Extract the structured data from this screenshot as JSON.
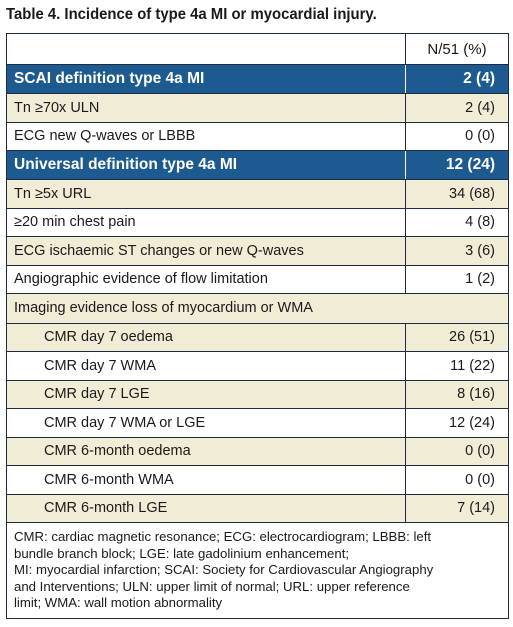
{
  "caption": "Table 4. Incidence of type 4a MI or myocardial injury.",
  "header": {
    "col1": "",
    "col2": "N/51 (%)"
  },
  "sections": {
    "scai": {
      "label": "SCAI definition type 4a MI",
      "value": "2 (4)"
    },
    "universal": {
      "label": "Universal definition type 4a MI",
      "value": "12 (24)"
    }
  },
  "scai_rows": [
    {
      "label": "Tn ≥70x ULN",
      "value": "2 (4)"
    },
    {
      "label": "ECG new Q-waves or LBBB",
      "value": "0 (0)"
    }
  ],
  "universal_rows": [
    {
      "label": "Tn ≥5x URL",
      "value": "34 (68)"
    },
    {
      "label": "≥20 min chest pain",
      "value": "4 (8)"
    },
    {
      "label": "ECG ischaemic ST changes or new Q-waves",
      "value": "3 (6)"
    },
    {
      "label": "Angiographic evidence of flow limitation",
      "value": "1 (2)"
    }
  ],
  "imaging_header": "Imaging evidence loss of myocardium or WMA",
  "imaging_rows": [
    {
      "label": "CMR day 7 oedema",
      "value": "26 (51)"
    },
    {
      "label": "CMR day 7 WMA",
      "value": "11 (22)"
    },
    {
      "label": "CMR day 7 LGE",
      "value": "8 (16)"
    },
    {
      "label": "CMR day 7 WMA or LGE",
      "value": "12 (24)"
    },
    {
      "label": "CMR 6-month oedema",
      "value": "0 (0)"
    },
    {
      "label": "CMR 6-month WMA",
      "value": "0 (0)"
    },
    {
      "label": "CMR 6-month LGE",
      "value": "7 (14)"
    }
  ],
  "footnote": [
    "CMR: cardiac magnetic resonance; ECG: electrocardiogram; LBBB: left",
    "bundle branch block; LGE: late gadolinium enhancement;",
    "MI: myocardial infarction; SCAI: Society for Cardiovascular Angiography",
    "and Interventions; ULN: upper limit of normal; URL: upper reference",
    "limit; WMA: wall motion abnormality"
  ],
  "colors": {
    "section_bg": "#1c5a8f",
    "tan_bg": "#f1ecd5",
    "border": "#1f2a44"
  }
}
